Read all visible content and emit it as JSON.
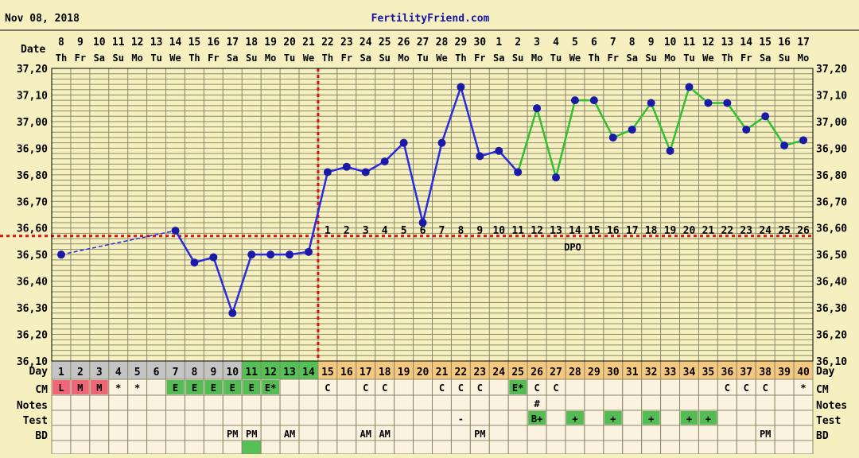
{
  "header": {
    "date": "Nov 08, 2018",
    "site": "FertilityFriend.com"
  },
  "labels": {
    "date": "Date",
    "day": "Day",
    "cm": "CM",
    "notes": "Notes",
    "test": "Test",
    "bd": "BD",
    "dpo": "DPO"
  },
  "colors": {
    "background": "#f6f0c0",
    "grid": "#8a8a6a",
    "temp_before": "#2a2ae0",
    "temp_after": "#30c030",
    "coverline": "#dd1111",
    "point": "#1a1aa8",
    "day_box_gray": "#c4c4c4",
    "day_box_green": "#55c055",
    "day_box_orange": "#f5c880",
    "menses": "#ee6677",
    "cm_green": "#55bb55"
  },
  "chart_data": {
    "type": "line",
    "ylim": [
      36.1,
      37.2
    ],
    "yticks": [
      "36,10",
      "36,20",
      "36,30",
      "36,40",
      "36,50",
      "36,60",
      "36,70",
      "36,80",
      "36,90",
      "37,00",
      "37,10",
      "37,20"
    ],
    "ytick_values": [
      36.1,
      36.2,
      36.3,
      36.4,
      36.5,
      36.6,
      36.7,
      36.8,
      36.9,
      37.0,
      37.1,
      37.2
    ],
    "dates": [
      "8",
      "9",
      "10",
      "11",
      "12",
      "13",
      "14",
      "15",
      "16",
      "17",
      "18",
      "19",
      "20",
      "21",
      "22",
      "23",
      "24",
      "25",
      "26",
      "27",
      "28",
      "29",
      "30",
      "1",
      "2",
      "3",
      "4",
      "5",
      "6",
      "7",
      "8",
      "9",
      "10",
      "11",
      "12",
      "13",
      "14",
      "15",
      "16",
      "17"
    ],
    "weekdays": [
      "Th",
      "Fr",
      "Sa",
      "Su",
      "Mo",
      "Tu",
      "We",
      "Th",
      "Fr",
      "Sa",
      "Su",
      "Mo",
      "Tu",
      "We",
      "Th",
      "Fr",
      "Sa",
      "Su",
      "Mo",
      "Tu",
      "We",
      "Th",
      "Fr",
      "Sa",
      "Su",
      "Mo",
      "Tu",
      "We",
      "Th",
      "Fr",
      "Sa",
      "Su",
      "Mo",
      "Tu",
      "We",
      "Th",
      "Fr",
      "Sa",
      "Su",
      "Mo"
    ],
    "cycle_days": [
      "1",
      "2",
      "3",
      "4",
      "5",
      "6",
      "7",
      "8",
      "9",
      "10",
      "11",
      "12",
      "13",
      "14",
      "15",
      "16",
      "17",
      "18",
      "19",
      "20",
      "21",
      "22",
      "23",
      "24",
      "25",
      "26",
      "27",
      "28",
      "29",
      "30",
      "31",
      "32",
      "33",
      "34",
      "35",
      "36",
      "37",
      "38",
      "39",
      "40"
    ],
    "temps": [
      36.5,
      null,
      null,
      null,
      null,
      null,
      36.59,
      36.47,
      36.49,
      36.28,
      36.5,
      36.5,
      36.5,
      36.51,
      36.81,
      36.83,
      36.81,
      36.85,
      36.92,
      36.62,
      36.92,
      37.13,
      36.87,
      36.89,
      36.81,
      37.05,
      36.79,
      37.08,
      37.08,
      36.94,
      36.97,
      37.07,
      36.89,
      37.13,
      37.07,
      37.07,
      36.97,
      37.02,
      36.91,
      36.93
    ],
    "green_from_index": 24,
    "coverline": 36.57,
    "ovulation_after_index": 13,
    "dpo": [
      "1",
      "2",
      "3",
      "4",
      "5",
      "6",
      "7",
      "8",
      "9",
      "10",
      "11",
      "12",
      "13",
      "14",
      "15",
      "16",
      "17",
      "18",
      "19",
      "20",
      "21",
      "22",
      "23",
      "24",
      "25",
      "26"
    ],
    "dpo_start_index": 14,
    "cm": [
      "L",
      "M",
      "M",
      "*",
      "*",
      "",
      "E",
      "E",
      "E",
      "E",
      "E",
      "E*",
      "",
      "",
      "C",
      "",
      "C",
      "C",
      "",
      "",
      "C",
      "C",
      "C",
      "",
      "E*",
      "C",
      "C",
      "",
      "",
      "",
      "",
      "",
      "",
      "",
      "",
      "C",
      "C",
      "C",
      "",
      "*"
    ],
    "notes": [
      "",
      "",
      "",
      "",
      "",
      "",
      "",
      "",
      "",
      "",
      "",
      "",
      "",
      "",
      "",
      "",
      "",
      "",
      "",
      "",
      "",
      "",
      "",
      "",
      "",
      "#",
      "",
      "",
      "",
      "",
      "",
      "",
      "",
      "",
      "",
      "",
      "",
      "",
      "",
      ""
    ],
    "test": [
      "",
      "",
      "",
      "",
      "",
      "",
      "",
      "",
      "",
      "",
      "",
      "",
      "",
      "",
      "",
      "",
      "",
      "",
      "",
      "",
      "",
      "-",
      "",
      "",
      "",
      "B+",
      "",
      "+",
      "",
      "+",
      "",
      "+",
      "",
      "+",
      "+",
      "",
      "",
      "",
      "",
      ""
    ],
    "bd": [
      "",
      "",
      "",
      "",
      "",
      "",
      "",
      "",
      "",
      "PM",
      "PM",
      "",
      "AM",
      "",
      "",
      "",
      "AM",
      "AM",
      "",
      "",
      "",
      "",
      "PM",
      "",
      "",
      "",
      "",
      "",
      "",
      "",
      "",
      "",
      "",
      "",
      "",
      "",
      "",
      "PM",
      "",
      ""
    ]
  }
}
